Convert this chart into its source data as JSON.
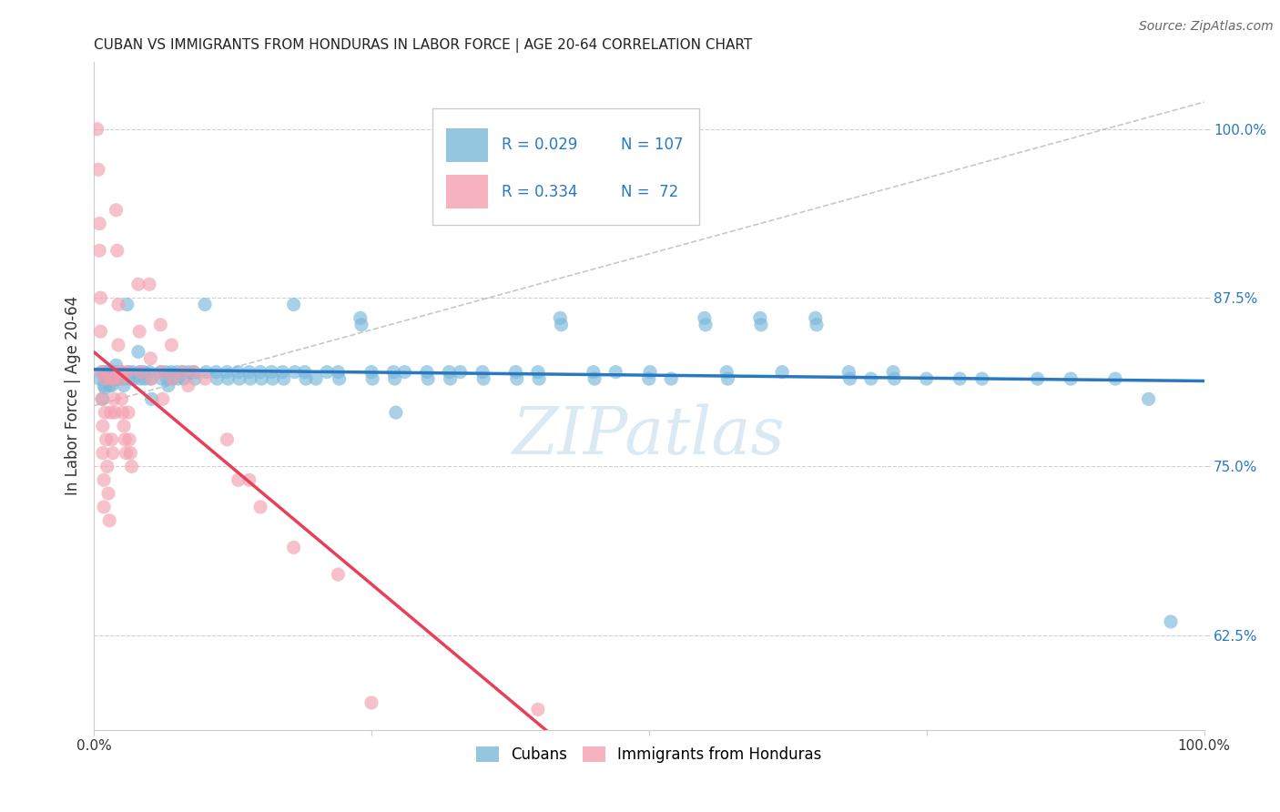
{
  "title": "CUBAN VS IMMIGRANTS FROM HONDURAS IN LABOR FORCE | AGE 20-64 CORRELATION CHART",
  "source": "Source: ZipAtlas.com",
  "ylabel": "In Labor Force | Age 20-64",
  "ytick_labels": [
    "62.5%",
    "75.0%",
    "87.5%",
    "100.0%"
  ],
  "ytick_values": [
    0.625,
    0.75,
    0.875,
    1.0
  ],
  "xlim": [
    0.0,
    1.0
  ],
  "ylim": [
    0.555,
    1.05
  ],
  "r1": 0.029,
  "n1": 107,
  "r2": 0.334,
  "n2": 72,
  "blue_color": "#7ab8d9",
  "pink_color": "#f4a0b0",
  "blue_line_color": "#2979c0",
  "pink_line_color": "#e8405a",
  "blue_scatter": [
    [
      0.005,
      0.815
    ],
    [
      0.007,
      0.82
    ],
    [
      0.008,
      0.8
    ],
    [
      0.009,
      0.81
    ],
    [
      0.01,
      0.82
    ],
    [
      0.01,
      0.815
    ],
    [
      0.01,
      0.808
    ],
    [
      0.012,
      0.815
    ],
    [
      0.013,
      0.82
    ],
    [
      0.014,
      0.81
    ],
    [
      0.015,
      0.82
    ],
    [
      0.015,
      0.815
    ],
    [
      0.016,
      0.81
    ],
    [
      0.018,
      0.82
    ],
    [
      0.019,
      0.815
    ],
    [
      0.02,
      0.825
    ],
    [
      0.021,
      0.82
    ],
    [
      0.022,
      0.815
    ],
    [
      0.025,
      0.82
    ],
    [
      0.026,
      0.815
    ],
    [
      0.027,
      0.81
    ],
    [
      0.03,
      0.87
    ],
    [
      0.031,
      0.82
    ],
    [
      0.032,
      0.815
    ],
    [
      0.035,
      0.82
    ],
    [
      0.036,
      0.815
    ],
    [
      0.04,
      0.835
    ],
    [
      0.041,
      0.82
    ],
    [
      0.042,
      0.815
    ],
    [
      0.045,
      0.82
    ],
    [
      0.046,
      0.815
    ],
    [
      0.05,
      0.82
    ],
    [
      0.051,
      0.815
    ],
    [
      0.052,
      0.8
    ],
    [
      0.06,
      0.82
    ],
    [
      0.061,
      0.815
    ],
    [
      0.065,
      0.82
    ],
    [
      0.066,
      0.815
    ],
    [
      0.067,
      0.81
    ],
    [
      0.07,
      0.82
    ],
    [
      0.071,
      0.815
    ],
    [
      0.075,
      0.82
    ],
    [
      0.076,
      0.815
    ],
    [
      0.08,
      0.82
    ],
    [
      0.081,
      0.815
    ],
    [
      0.085,
      0.82
    ],
    [
      0.09,
      0.82
    ],
    [
      0.091,
      0.815
    ],
    [
      0.1,
      0.87
    ],
    [
      0.101,
      0.82
    ],
    [
      0.11,
      0.82
    ],
    [
      0.111,
      0.815
    ],
    [
      0.12,
      0.82
    ],
    [
      0.121,
      0.815
    ],
    [
      0.13,
      0.82
    ],
    [
      0.131,
      0.815
    ],
    [
      0.14,
      0.82
    ],
    [
      0.141,
      0.815
    ],
    [
      0.15,
      0.82
    ],
    [
      0.151,
      0.815
    ],
    [
      0.16,
      0.82
    ],
    [
      0.161,
      0.815
    ],
    [
      0.17,
      0.82
    ],
    [
      0.171,
      0.815
    ],
    [
      0.18,
      0.87
    ],
    [
      0.181,
      0.82
    ],
    [
      0.19,
      0.82
    ],
    [
      0.191,
      0.815
    ],
    [
      0.2,
      0.815
    ],
    [
      0.21,
      0.82
    ],
    [
      0.22,
      0.82
    ],
    [
      0.221,
      0.815
    ],
    [
      0.24,
      0.86
    ],
    [
      0.241,
      0.855
    ],
    [
      0.25,
      0.82
    ],
    [
      0.251,
      0.815
    ],
    [
      0.27,
      0.82
    ],
    [
      0.271,
      0.815
    ],
    [
      0.272,
      0.79
    ],
    [
      0.28,
      0.82
    ],
    [
      0.3,
      0.82
    ],
    [
      0.301,
      0.815
    ],
    [
      0.32,
      0.82
    ],
    [
      0.321,
      0.815
    ],
    [
      0.33,
      0.82
    ],
    [
      0.35,
      0.82
    ],
    [
      0.351,
      0.815
    ],
    [
      0.38,
      0.82
    ],
    [
      0.381,
      0.815
    ],
    [
      0.4,
      0.82
    ],
    [
      0.401,
      0.815
    ],
    [
      0.42,
      0.86
    ],
    [
      0.421,
      0.855
    ],
    [
      0.45,
      0.82
    ],
    [
      0.451,
      0.815
    ],
    [
      0.47,
      0.82
    ],
    [
      0.5,
      0.815
    ],
    [
      0.501,
      0.82
    ],
    [
      0.52,
      0.815
    ],
    [
      0.55,
      0.86
    ],
    [
      0.551,
      0.855
    ],
    [
      0.57,
      0.82
    ],
    [
      0.571,
      0.815
    ],
    [
      0.6,
      0.86
    ],
    [
      0.601,
      0.855
    ],
    [
      0.62,
      0.82
    ],
    [
      0.65,
      0.86
    ],
    [
      0.651,
      0.855
    ],
    [
      0.68,
      0.82
    ],
    [
      0.681,
      0.815
    ],
    [
      0.7,
      0.815
    ],
    [
      0.72,
      0.82
    ],
    [
      0.721,
      0.815
    ],
    [
      0.75,
      0.815
    ],
    [
      0.78,
      0.815
    ],
    [
      0.8,
      0.815
    ],
    [
      0.85,
      0.815
    ],
    [
      0.88,
      0.815
    ],
    [
      0.92,
      0.815
    ],
    [
      0.95,
      0.8
    ],
    [
      0.97,
      0.635
    ]
  ],
  "pink_scatter": [
    [
      0.003,
      1.0
    ],
    [
      0.004,
      0.97
    ],
    [
      0.005,
      0.93
    ],
    [
      0.005,
      0.91
    ],
    [
      0.006,
      0.875
    ],
    [
      0.006,
      0.85
    ],
    [
      0.007,
      0.82
    ],
    [
      0.007,
      0.8
    ],
    [
      0.008,
      0.78
    ],
    [
      0.008,
      0.76
    ],
    [
      0.009,
      0.74
    ],
    [
      0.009,
      0.72
    ],
    [
      0.01,
      0.815
    ],
    [
      0.01,
      0.79
    ],
    [
      0.011,
      0.77
    ],
    [
      0.012,
      0.75
    ],
    [
      0.013,
      0.73
    ],
    [
      0.014,
      0.71
    ],
    [
      0.015,
      0.815
    ],
    [
      0.015,
      0.79
    ],
    [
      0.016,
      0.77
    ],
    [
      0.017,
      0.76
    ],
    [
      0.018,
      0.815
    ],
    [
      0.018,
      0.8
    ],
    [
      0.019,
      0.79
    ],
    [
      0.02,
      0.94
    ],
    [
      0.021,
      0.91
    ],
    [
      0.022,
      0.87
    ],
    [
      0.022,
      0.84
    ],
    [
      0.023,
      0.82
    ],
    [
      0.024,
      0.815
    ],
    [
      0.025,
      0.82
    ],
    [
      0.025,
      0.8
    ],
    [
      0.026,
      0.79
    ],
    [
      0.027,
      0.78
    ],
    [
      0.028,
      0.77
    ],
    [
      0.029,
      0.76
    ],
    [
      0.03,
      0.82
    ],
    [
      0.031,
      0.79
    ],
    [
      0.032,
      0.77
    ],
    [
      0.033,
      0.76
    ],
    [
      0.034,
      0.75
    ],
    [
      0.04,
      0.885
    ],
    [
      0.041,
      0.85
    ],
    [
      0.042,
      0.82
    ],
    [
      0.05,
      0.885
    ],
    [
      0.051,
      0.83
    ],
    [
      0.052,
      0.815
    ],
    [
      0.06,
      0.855
    ],
    [
      0.061,
      0.82
    ],
    [
      0.062,
      0.8
    ],
    [
      0.07,
      0.84
    ],
    [
      0.071,
      0.815
    ],
    [
      0.08,
      0.82
    ],
    [
      0.085,
      0.81
    ],
    [
      0.09,
      0.82
    ],
    [
      0.1,
      0.815
    ],
    [
      0.12,
      0.77
    ],
    [
      0.13,
      0.74
    ],
    [
      0.14,
      0.74
    ],
    [
      0.15,
      0.72
    ],
    [
      0.18,
      0.69
    ],
    [
      0.22,
      0.67
    ],
    [
      0.25,
      0.575
    ],
    [
      0.4,
      0.57
    ]
  ],
  "watermark_text": "ZIPatlas",
  "watermark_color": "#b8d4e8",
  "background_color": "#ffffff",
  "grid_color": "#d0d0d0",
  "dashed_line": [
    [
      0.0,
      0.795
    ],
    [
      1.0,
      1.02
    ]
  ]
}
